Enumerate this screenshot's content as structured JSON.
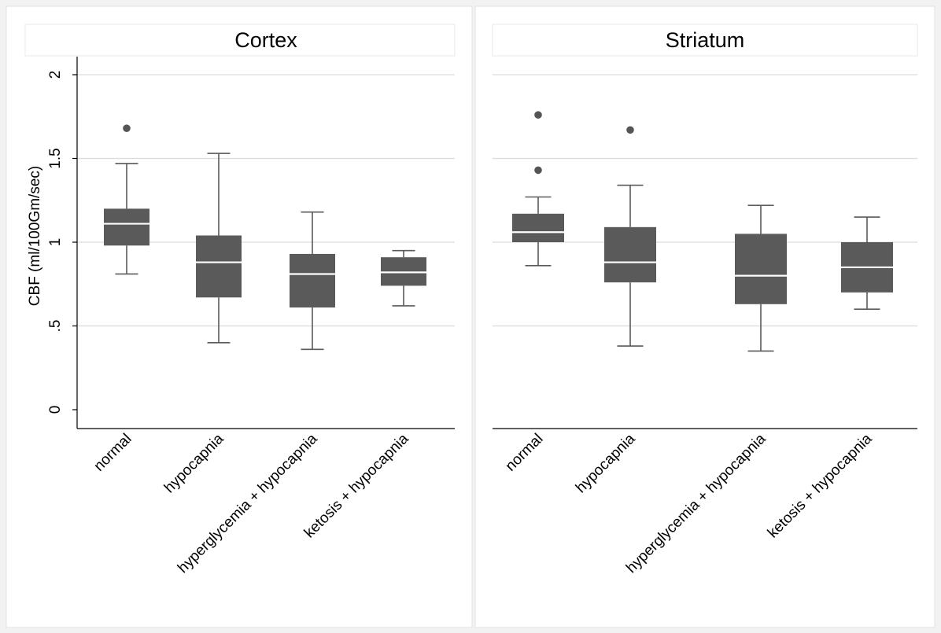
{
  "chart_data": {
    "type": "box",
    "ylabel": "CBF (ml/100Gm/sec)",
    "ylim": [
      0,
      2.1
    ],
    "yticks": [
      0,
      0.5,
      1,
      1.5,
      2
    ],
    "ytick_labels": [
      "0",
      ".5",
      "1",
      "1.5",
      "2"
    ],
    "grid": true,
    "categories": [
      "normal",
      "hypocapnia",
      "hyperglycemia + hypocapnia",
      "ketosis + hypocapnia"
    ],
    "panels": [
      {
        "title": "Cortex",
        "boxes": [
          {
            "category": "normal",
            "whisker_low": 0.81,
            "q1": 0.98,
            "median": 1.11,
            "q3": 1.2,
            "whisker_high": 1.47,
            "outliers": [
              1.68
            ]
          },
          {
            "category": "hypocapnia",
            "whisker_low": 0.4,
            "q1": 0.67,
            "median": 0.88,
            "q3": 1.04,
            "whisker_high": 1.53,
            "outliers": []
          },
          {
            "category": "hyperglycemia + hypocapnia",
            "whisker_low": 0.36,
            "q1": 0.61,
            "median": 0.81,
            "q3": 0.93,
            "whisker_high": 1.18,
            "outliers": []
          },
          {
            "category": "ketosis + hypocapnia",
            "whisker_low": 0.62,
            "q1": 0.74,
            "median": 0.82,
            "q3": 0.91,
            "whisker_high": 0.95,
            "outliers": []
          }
        ]
      },
      {
        "title": "Striatum",
        "boxes": [
          {
            "category": "normal",
            "whisker_low": 0.86,
            "q1": 1.0,
            "median": 1.06,
            "q3": 1.17,
            "whisker_high": 1.27,
            "outliers": [
              1.43,
              1.76
            ]
          },
          {
            "category": "hypocapnia",
            "whisker_low": 0.38,
            "q1": 0.76,
            "median": 0.88,
            "q3": 1.09,
            "whisker_high": 1.34,
            "outliers": [
              1.67
            ]
          },
          {
            "category": "hyperglycemia + hypocapnia",
            "whisker_low": 0.35,
            "q1": 0.63,
            "median": 0.8,
            "q3": 1.05,
            "whisker_high": 1.22,
            "outliers": []
          },
          {
            "category": "ketosis + hypocapnia",
            "whisker_low": 0.6,
            "q1": 0.7,
            "median": 0.85,
            "q3": 1.0,
            "whisker_high": 1.15,
            "outliers": []
          }
        ]
      }
    ],
    "colors": {
      "box_fill": "#5a5a5a",
      "median_line": "#ffffff",
      "whisker": "#5a5a5a",
      "outlier": "#555555",
      "gridline": "#dcdcdc",
      "axis": "#000000",
      "background": "#ffffff",
      "outer_background": "#f2f2f2"
    }
  }
}
